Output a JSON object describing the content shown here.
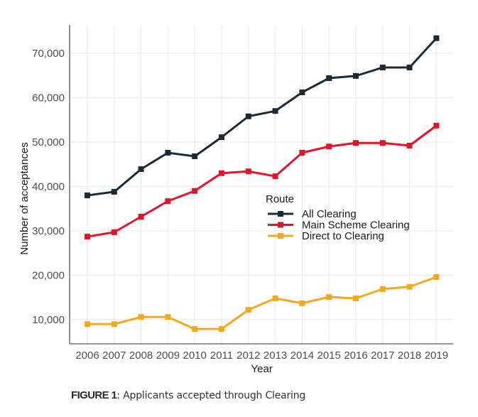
{
  "chart_data": {
    "type": "line",
    "title": "",
    "xlabel": "Year",
    "ylabel": "Number of acceptances",
    "x": [
      2006,
      2007,
      2008,
      2009,
      2010,
      2011,
      2012,
      2013,
      2014,
      2015,
      2016,
      2017,
      2018,
      2019
    ],
    "x_tick_labels": [
      "2006",
      "2007",
      "2008",
      "2009",
      "2010",
      "2011",
      "2012",
      "2013",
      "2014",
      "2015",
      "2016",
      "2017",
      "2018",
      "2019"
    ],
    "y_ticks": [
      10000,
      20000,
      30000,
      40000,
      50000,
      60000,
      70000
    ],
    "y_tick_labels": [
      "10,000",
      "20,000",
      "30,000",
      "40,000",
      "50,000",
      "60,000",
      "70,000"
    ],
    "ylim": [
      5000,
      77000
    ],
    "xlim": [
      2005.4,
      2019.65
    ],
    "grid": true,
    "legend": {
      "title": "Route",
      "placement": "center-right"
    },
    "series": [
      {
        "name": "All Clearing",
        "color": "#1c2a36",
        "values": [
          38000,
          38800,
          43900,
          47600,
          46800,
          51100,
          55800,
          57000,
          61200,
          64400,
          64900,
          66800,
          66800,
          73400
        ]
      },
      {
        "name": "Main Scheme Clearing",
        "color": "#e4132c",
        "values": [
          28700,
          29700,
          33200,
          36700,
          39000,
          43000,
          43400,
          42300,
          47600,
          49000,
          49800,
          49800,
          49200,
          53700
        ]
      },
      {
        "name": "Direct to Clearing",
        "color": "#f5a81c",
        "values": [
          9000,
          9000,
          10600,
          10600,
          7900,
          7900,
          12200,
          14800,
          13700,
          15100,
          14800,
          16900,
          17400,
          19600
        ]
      }
    ]
  },
  "caption": {
    "label": "FIGURE 1",
    "text": ": Applicants accepted through Clearing"
  }
}
